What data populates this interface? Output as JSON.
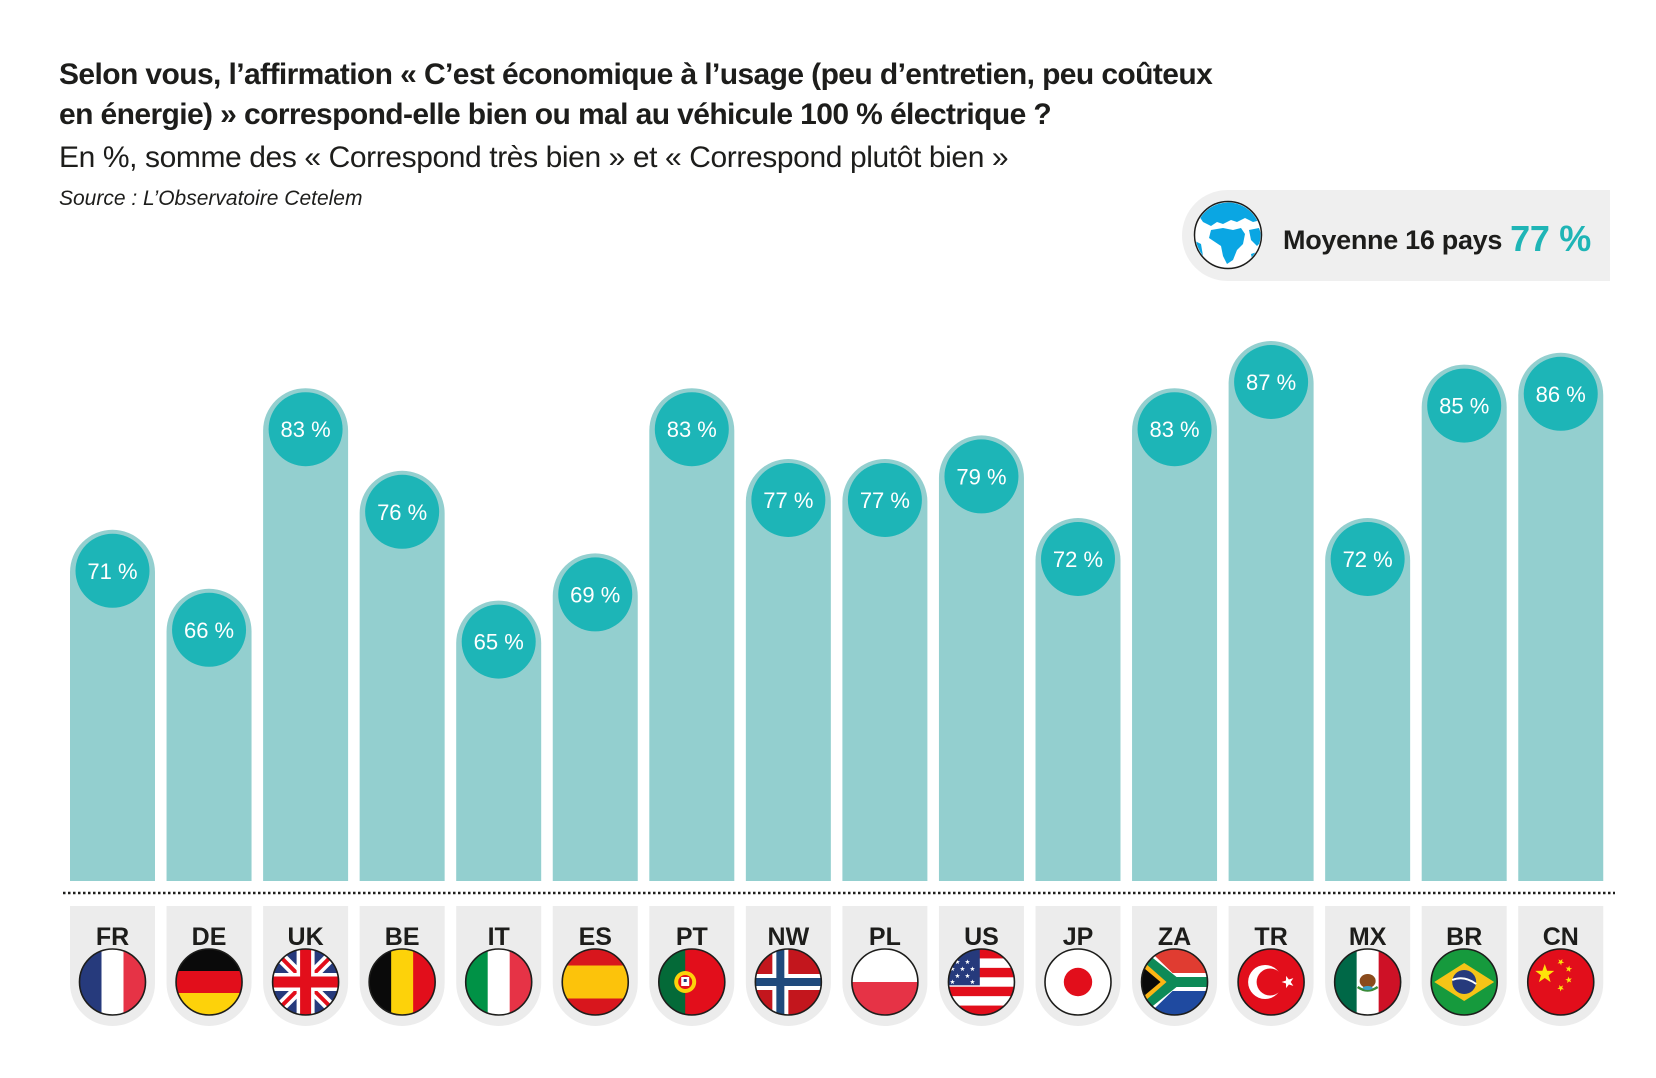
{
  "header": {
    "title_line1": "Selon vous, l’affirmation « C’est économique à l’usage (peu d’entretien, peu coûteux",
    "title_line2": "en énergie) » correspond-elle bien ou mal au véhicule 100 % électrique ?",
    "subtitle": "En %, somme des « Correspond très bien » et « Correspond plutôt bien »",
    "source": "Source : L’Observatoire Cetelem"
  },
  "average_badge": {
    "icon": "globe-icon",
    "label": "Moyenne 16 pays",
    "value": "77 %"
  },
  "colors": {
    "bar": "#93cfcf",
    "circle": "#1db5b7",
    "text": "#1d1d1b",
    "accent": "#1fb5b6",
    "tile": "#ececec"
  },
  "chart_data": {
    "type": "bar",
    "title": "Selon vous, l’affirmation « C’est économique à l’usage (peu d’entretien, peu coûteux en énergie) » correspond-elle bien ou mal au véhicule 100 % électrique ?",
    "subtitle": "En %, somme des « Correspond très bien » et « Correspond plutôt bien »",
    "xlabel": "",
    "ylabel": "",
    "unit": "%",
    "grid": false,
    "categories": [
      "FR",
      "DE",
      "UK",
      "BE",
      "IT",
      "ES",
      "PT",
      "NW",
      "PL",
      "US",
      "JP",
      "ZA",
      "TR",
      "MX",
      "BR",
      "CN"
    ],
    "values": [
      71,
      66,
      83,
      76,
      65,
      69,
      83,
      77,
      77,
      79,
      72,
      83,
      87,
      72,
      85,
      86
    ],
    "value_labels": [
      "71 %",
      "66 %",
      "83 %",
      "76 %",
      "65 %",
      "69 %",
      "83 %",
      "77 %",
      "77 %",
      "79 %",
      "72 %",
      "83 %",
      "87 %",
      "72 %",
      "85 %",
      "86 %"
    ],
    "flags": [
      "flag-france-icon",
      "flag-germany-icon",
      "flag-uk-icon",
      "flag-belgium-icon",
      "flag-italy-icon",
      "flag-spain-icon",
      "flag-portugal-icon",
      "flag-norway-icon",
      "flag-poland-icon",
      "flag-usa-icon",
      "flag-japan-icon",
      "flag-south-africa-icon",
      "flag-turkey-icon",
      "flag-mexico-icon",
      "flag-brazil-icon",
      "flag-china-icon"
    ],
    "average": {
      "label": "Moyenne 16 pays",
      "value": 77
    }
  }
}
